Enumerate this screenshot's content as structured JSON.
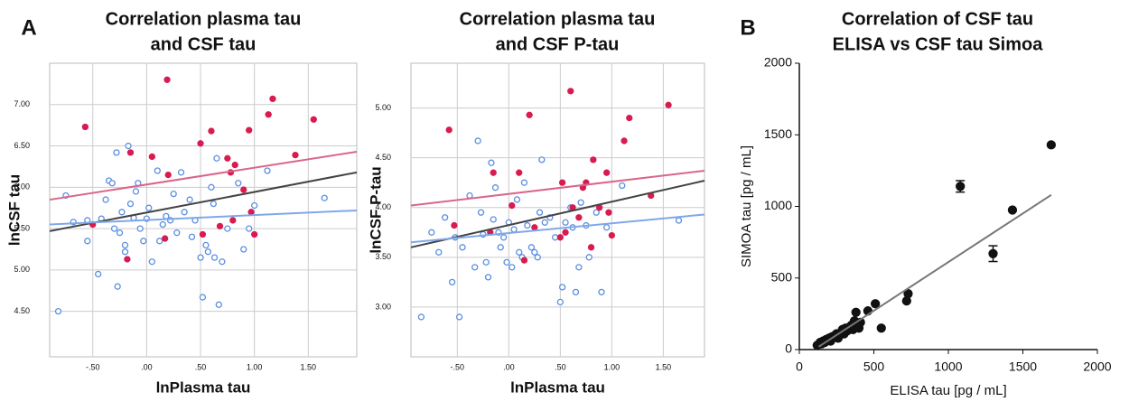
{
  "chart_data": [
    {
      "type": "scatter",
      "panel_label": "A",
      "title": [
        "Correlation plasma tau",
        "and CSF tau"
      ],
      "xlabel": "lnPlasma tau",
      "ylabel": "lnCSF tau",
      "frame": "box",
      "grid": true,
      "xlim": [
        -0.9,
        1.95
      ],
      "ylim": [
        3.95,
        7.5
      ],
      "xticks": [
        {
          "value": -0.5,
          "label": "-.50"
        },
        {
          "value": 0,
          "label": ".00"
        },
        {
          "value": 0.5,
          "label": ".50"
        },
        {
          "value": 1,
          "label": "1.00"
        },
        {
          "value": 1.5,
          "label": "1.50"
        }
      ],
      "yticks": [
        {
          "value": 4.5,
          "label": "4.50"
        },
        {
          "value": 5,
          "label": "5.00"
        },
        {
          "value": 5.5,
          "label": "5.50"
        },
        {
          "value": 6,
          "label": "6.00"
        },
        {
          "value": 6.5,
          "label": "6.50"
        },
        {
          "value": 7,
          "label": "7.00"
        }
      ],
      "series": [
        {
          "color": "#5b8fe0",
          "filled": false,
          "x": [
            -0.82,
            -0.75,
            -0.68,
            -0.55,
            -0.55,
            -0.45,
            -0.42,
            -0.38,
            -0.35,
            -0.32,
            -0.3,
            -0.28,
            -0.27,
            -0.25,
            -0.23,
            -0.2,
            -0.2,
            -0.17,
            -0.15,
            -0.12,
            -0.1,
            -0.08,
            -0.06,
            -0.03,
            0.0,
            0.02,
            0.05,
            0.1,
            0.12,
            0.15,
            0.18,
            0.22,
            0.25,
            0.28,
            0.32,
            0.35,
            0.4,
            0.42,
            0.45,
            0.5,
            0.52,
            0.55,
            0.57,
            0.6,
            0.62,
            0.63,
            0.65,
            0.67,
            0.7,
            0.75,
            0.85,
            0.9,
            0.95,
            1.0,
            1.12,
            1.65
          ],
          "values": [
            4.5,
            5.9,
            5.58,
            5.35,
            5.6,
            4.95,
            5.62,
            5.85,
            6.08,
            6.05,
            5.5,
            6.42,
            4.8,
            5.45,
            5.7,
            5.3,
            5.22,
            6.5,
            5.8,
            5.63,
            5.95,
            6.05,
            5.5,
            5.35,
            5.62,
            5.75,
            5.1,
            6.2,
            5.35,
            5.55,
            5.65,
            5.6,
            5.92,
            5.45,
            6.18,
            5.7,
            5.85,
            5.4,
            5.6,
            5.15,
            4.67,
            5.3,
            5.22,
            6.0,
            5.8,
            5.15,
            6.35,
            4.58,
            5.1,
            5.5,
            6.05,
            5.25,
            5.5,
            5.78,
            6.2,
            5.87
          ]
        },
        {
          "color": "#d81b50",
          "filled": true,
          "x": [
            -0.57,
            -0.5,
            -0.15,
            -0.18,
            0.05,
            0.19,
            0.2,
            0.17,
            0.5,
            0.52,
            0.6,
            0.68,
            0.75,
            0.78,
            0.82,
            0.8,
            0.9,
            0.95,
            0.97,
            1.0,
            1.13,
            1.17,
            1.38,
            1.55
          ],
          "values": [
            6.73,
            5.55,
            6.42,
            5.13,
            6.37,
            7.3,
            6.15,
            5.38,
            6.53,
            5.43,
            6.68,
            5.53,
            6.35,
            6.18,
            6.27,
            5.6,
            5.97,
            6.69,
            5.7,
            5.43,
            6.88,
            7.07,
            6.39,
            6.82
          ]
        }
      ],
      "lines": [
        {
          "color": "#d9668a",
          "x": [
            -0.9,
            1.95
          ],
          "values": [
            5.85,
            6.43
          ]
        },
        {
          "color": "#444444",
          "x": [
            -0.9,
            1.95
          ],
          "values": [
            5.47,
            6.18
          ]
        },
        {
          "color": "#7fa8e8",
          "x": [
            -0.9,
            1.95
          ],
          "values": [
            5.55,
            5.72
          ]
        }
      ]
    },
    {
      "type": "scatter",
      "title": [
        "Correlation plasma tau",
        "and CSF P-tau"
      ],
      "xlabel": "lnPlasma tau",
      "ylabel": "lnCSF P-tau",
      "frame": "box",
      "grid": true,
      "xlim": [
        -0.95,
        1.9
      ],
      "ylim": [
        2.5,
        5.45
      ],
      "xticks": [
        {
          "value": -0.5,
          "label": "-.50"
        },
        {
          "value": 0,
          "label": ".00"
        },
        {
          "value": 0.5,
          "label": ".50"
        },
        {
          "value": 1,
          "label": "1.00"
        },
        {
          "value": 1.5,
          "label": "1.50"
        }
      ],
      "yticks": [
        {
          "value": 3,
          "label": "3.00"
        },
        {
          "value": 3.5,
          "label": "3.50"
        },
        {
          "value": 4,
          "label": "4.00"
        },
        {
          "value": 4.5,
          "label": "4.50"
        },
        {
          "value": 5,
          "label": "5.00"
        }
      ],
      "series": [
        {
          "color": "#5b8fe0",
          "filled": false,
          "x": [
            -0.85,
            -0.75,
            -0.68,
            -0.62,
            -0.55,
            -0.52,
            -0.48,
            -0.45,
            -0.38,
            -0.33,
            -0.3,
            -0.27,
            -0.25,
            -0.22,
            -0.2,
            -0.17,
            -0.15,
            -0.13,
            -0.1,
            -0.08,
            -0.05,
            -0.02,
            0.0,
            0.03,
            0.05,
            0.08,
            0.1,
            0.13,
            0.15,
            0.18,
            0.22,
            0.25,
            0.28,
            0.3,
            0.32,
            0.35,
            0.4,
            0.45,
            0.5,
            0.52,
            0.55,
            0.6,
            0.62,
            0.65,
            0.68,
            0.7,
            0.75,
            0.78,
            0.85,
            0.9,
            0.95,
            1.1,
            1.65
          ],
          "values": [
            2.9,
            3.75,
            3.55,
            3.9,
            3.25,
            3.7,
            2.9,
            3.6,
            4.12,
            3.4,
            4.67,
            3.95,
            3.73,
            3.45,
            3.3,
            4.45,
            3.88,
            4.2,
            3.75,
            3.6,
            3.7,
            3.45,
            3.85,
            3.4,
            3.78,
            4.08,
            3.55,
            3.5,
            4.25,
            3.82,
            3.6,
            3.55,
            3.5,
            3.95,
            4.48,
            3.85,
            3.9,
            3.7,
            3.05,
            3.2,
            3.85,
            4.0,
            3.8,
            3.15,
            3.4,
            4.05,
            3.82,
            3.5,
            3.95,
            3.15,
            3.8,
            4.22,
            3.87
          ]
        },
        {
          "color": "#d81b50",
          "filled": true,
          "x": [
            -0.58,
            -0.53,
            -0.18,
            -0.15,
            0.03,
            0.1,
            0.15,
            0.2,
            0.25,
            0.5,
            0.52,
            0.55,
            0.6,
            0.62,
            0.68,
            0.72,
            0.75,
            0.8,
            0.82,
            0.88,
            0.95,
            0.97,
            1.0,
            1.12,
            1.17,
            1.38,
            1.55
          ],
          "values": [
            4.78,
            3.82,
            3.75,
            4.35,
            4.02,
            4.35,
            3.47,
            4.93,
            3.8,
            3.7,
            4.25,
            3.75,
            5.17,
            4.0,
            3.9,
            4.2,
            4.25,
            3.6,
            4.48,
            4.0,
            4.35,
            3.95,
            3.72,
            4.67,
            4.9,
            4.12,
            5.03
          ]
        }
      ],
      "lines": [
        {
          "color": "#d9668a",
          "x": [
            -0.95,
            1.9
          ],
          "values": [
            4.02,
            4.37
          ]
        },
        {
          "color": "#444444",
          "x": [
            -0.95,
            1.9
          ],
          "values": [
            3.6,
            4.27
          ]
        },
        {
          "color": "#7fa8e8",
          "x": [
            -0.95,
            1.9
          ],
          "values": [
            3.65,
            3.93
          ]
        }
      ]
    },
    {
      "type": "scatter",
      "panel_label": "B",
      "title": [
        "Correlation of CSF tau",
        "ELISA vs CSF tau Simoa"
      ],
      "xlabel": "ELISA tau [pg / mL]",
      "ylabel": "SIMOA tau [pg / mL]",
      "frame": "axes",
      "grid": false,
      "xlim": [
        0,
        2000
      ],
      "ylim": [
        0,
        2000
      ],
      "xticks": [
        0,
        500,
        1000,
        1500,
        2000
      ],
      "yticks": [
        0,
        500,
        1000,
        1500,
        2000
      ],
      "series": [
        {
          "color": "#111111",
          "filled": true,
          "x": [
            120,
            140,
            150,
            160,
            170,
            180,
            200,
            210,
            220,
            240,
            250,
            260,
            280,
            290,
            300,
            310,
            320,
            340,
            350,
            360,
            370,
            380,
            390,
            400,
            410,
            460,
            510,
            550,
            720,
            730,
            1080,
            1300,
            1430,
            1690
          ],
          "values": [
            30,
            50,
            40,
            60,
            50,
            70,
            80,
            60,
            90,
            100,
            110,
            80,
            120,
            140,
            110,
            150,
            130,
            160,
            170,
            140,
            200,
            260,
            180,
            150,
            190,
            270,
            320,
            150,
            340,
            390,
            1140,
            670,
            975,
            1430
          ],
          "errors": [
            null,
            null,
            null,
            null,
            null,
            null,
            null,
            null,
            null,
            null,
            null,
            null,
            null,
            null,
            null,
            null,
            null,
            null,
            null,
            null,
            null,
            null,
            null,
            null,
            null,
            null,
            null,
            null,
            null,
            null,
            40,
            55,
            null,
            null
          ]
        }
      ],
      "lines": [
        {
          "color": "#777777",
          "x": [
            130,
            1690
          ],
          "values": [
            20,
            1080
          ]
        }
      ]
    }
  ]
}
